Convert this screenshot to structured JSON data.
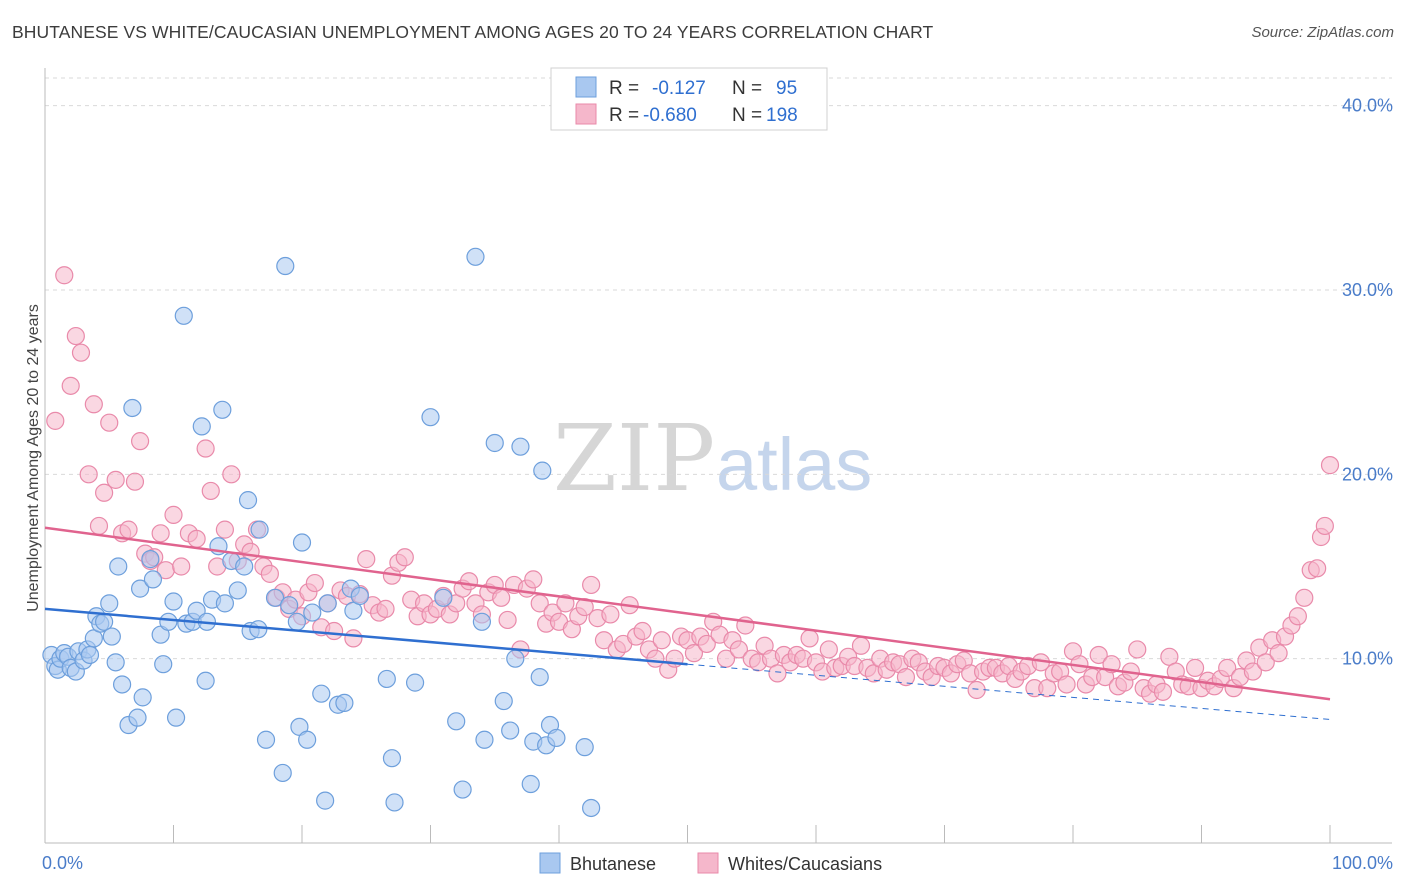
{
  "title": "BHUTANESE VS WHITE/CAUCASIAN UNEMPLOYMENT AMONG AGES 20 TO 24 YEARS CORRELATION CHART",
  "source": "Source: ZipAtlas.com",
  "watermark": {
    "part1": "ZIP",
    "part2": "atlas"
  },
  "colors": {
    "blue_fill": "#a9c8f0",
    "blue_stroke": "#6d9fdc",
    "blue_line": "#2f6fd0",
    "pink_fill": "#f5b7cb",
    "pink_stroke": "#e98aaa",
    "pink_line": "#e0638e",
    "grid": "#d9d9d9",
    "tick_text": "#4a7cc9"
  },
  "legend": {
    "rows": [
      {
        "r_label": "R =",
        "r_value": "-0.127",
        "n_label": "N =",
        "n_value": "95"
      },
      {
        "r_label": "R =",
        "r_value": "-0.680",
        "n_label": "N =",
        "n_value": "198"
      }
    ]
  },
  "bottom_legend": [
    "Bhutanese",
    "Whites/Caucasians"
  ],
  "chart_data": {
    "type": "scatter",
    "ylabel": "Unemployment Among Ages 20 to 24 years",
    "x_tick_labels": [
      "0.0%",
      "100.0%"
    ],
    "y_tick_labels": [
      "10.0%",
      "20.0%",
      "30.0%",
      "40.0%"
    ],
    "y_tick_values": [
      10,
      20,
      30,
      40
    ],
    "xlim": [
      0,
      100
    ],
    "ylim": [
      0,
      41.5
    ],
    "grid": true,
    "legend_position": "top-center",
    "series": [
      {
        "name": "Bhutanese",
        "trend": {
          "x_start": 0,
          "y_start": 12.7,
          "x_solid_end": 50,
          "x_end": 100,
          "y_end": 6.7
        },
        "points": [
          [
            0.5,
            10.2
          ],
          [
            0.8,
            9.6
          ],
          [
            1.0,
            9.4
          ],
          [
            1.2,
            10.0
          ],
          [
            1.5,
            10.3
          ],
          [
            1.8,
            10.1
          ],
          [
            2.0,
            9.5
          ],
          [
            2.4,
            9.3
          ],
          [
            2.6,
            10.4
          ],
          [
            3.0,
            9.9
          ],
          [
            3.3,
            10.5
          ],
          [
            3.5,
            10.2
          ],
          [
            3.8,
            11.1
          ],
          [
            4.0,
            12.3
          ],
          [
            4.3,
            11.9
          ],
          [
            4.6,
            12.0
          ],
          [
            5.0,
            13.0
          ],
          [
            5.2,
            11.2
          ],
          [
            5.5,
            9.8
          ],
          [
            5.7,
            15.0
          ],
          [
            6.0,
            8.6
          ],
          [
            6.5,
            6.4
          ],
          [
            6.8,
            23.6
          ],
          [
            7.2,
            6.8
          ],
          [
            7.4,
            13.8
          ],
          [
            7.6,
            7.9
          ],
          [
            8.2,
            15.4
          ],
          [
            8.4,
            14.3
          ],
          [
            9.0,
            11.3
          ],
          [
            9.2,
            9.7
          ],
          [
            9.6,
            12.0
          ],
          [
            10.0,
            13.1
          ],
          [
            10.2,
            6.8
          ],
          [
            10.8,
            28.6
          ],
          [
            11.0,
            11.9
          ],
          [
            11.5,
            12.0
          ],
          [
            11.8,
            12.6
          ],
          [
            12.2,
            22.6
          ],
          [
            12.5,
            8.8
          ],
          [
            12.6,
            12.0
          ],
          [
            13.0,
            13.2
          ],
          [
            13.5,
            16.1
          ],
          [
            13.8,
            23.5
          ],
          [
            14.0,
            13.0
          ],
          [
            14.5,
            15.3
          ],
          [
            15.0,
            13.7
          ],
          [
            15.5,
            15.0
          ],
          [
            15.8,
            18.6
          ],
          [
            16.0,
            11.5
          ],
          [
            16.6,
            11.6
          ],
          [
            16.7,
            17.0
          ],
          [
            17.2,
            5.6
          ],
          [
            17.9,
            13.3
          ],
          [
            18.5,
            3.8
          ],
          [
            18.7,
            31.3
          ],
          [
            19.0,
            12.9
          ],
          [
            19.6,
            12.0
          ],
          [
            19.8,
            6.3
          ],
          [
            20.0,
            16.3
          ],
          [
            20.4,
            5.6
          ],
          [
            20.8,
            12.5
          ],
          [
            21.5,
            8.1
          ],
          [
            21.8,
            2.3
          ],
          [
            22.0,
            13.0
          ],
          [
            22.8,
            7.5
          ],
          [
            23.3,
            7.6
          ],
          [
            23.8,
            13.8
          ],
          [
            24.0,
            12.6
          ],
          [
            24.5,
            13.4
          ],
          [
            26.6,
            8.9
          ],
          [
            27.0,
            4.6
          ],
          [
            27.2,
            2.2
          ],
          [
            28.8,
            8.7
          ],
          [
            30.0,
            23.1
          ],
          [
            31.0,
            13.3
          ],
          [
            32.0,
            6.6
          ],
          [
            32.5,
            2.9
          ],
          [
            33.5,
            31.8
          ],
          [
            34.0,
            12.0
          ],
          [
            34.2,
            5.6
          ],
          [
            35.0,
            21.7
          ],
          [
            35.7,
            7.7
          ],
          [
            36.2,
            6.1
          ],
          [
            36.6,
            10.0
          ],
          [
            37.0,
            21.5
          ],
          [
            37.8,
            3.2
          ],
          [
            38.0,
            5.5
          ],
          [
            38.5,
            9.0
          ],
          [
            38.7,
            20.2
          ],
          [
            39.0,
            5.3
          ],
          [
            39.3,
            6.4
          ],
          [
            39.8,
            5.7
          ],
          [
            42.0,
            5.2
          ],
          [
            42.5,
            1.9
          ]
        ]
      },
      {
        "name": "Whites/Caucasians",
        "trend": {
          "x_start": 0,
          "y_start": 17.1,
          "x_end": 100,
          "y_end": 7.8
        },
        "points": [
          [
            0.8,
            22.9
          ],
          [
            1.5,
            30.8
          ],
          [
            2.0,
            24.8
          ],
          [
            2.4,
            27.5
          ],
          [
            2.8,
            26.6
          ],
          [
            3.4,
            20.0
          ],
          [
            3.8,
            23.8
          ],
          [
            4.2,
            17.2
          ],
          [
            4.6,
            19.0
          ],
          [
            5.0,
            22.8
          ],
          [
            5.5,
            19.7
          ],
          [
            6.0,
            16.8
          ],
          [
            6.5,
            17.0
          ],
          [
            7.0,
            19.6
          ],
          [
            7.4,
            21.8
          ],
          [
            7.8,
            15.7
          ],
          [
            8.2,
            15.3
          ],
          [
            8.5,
            15.5
          ],
          [
            9.0,
            16.8
          ],
          [
            9.4,
            14.8
          ],
          [
            10.0,
            17.8
          ],
          [
            10.6,
            15.0
          ],
          [
            11.2,
            16.8
          ],
          [
            11.8,
            16.5
          ],
          [
            12.5,
            21.4
          ],
          [
            12.9,
            19.1
          ],
          [
            13.4,
            15.0
          ],
          [
            14.0,
            17.0
          ],
          [
            14.5,
            20.0
          ],
          [
            15.0,
            15.3
          ],
          [
            15.5,
            16.2
          ],
          [
            16.0,
            15.8
          ],
          [
            16.5,
            17.0
          ],
          [
            17.0,
            15.0
          ],
          [
            17.5,
            14.6
          ],
          [
            18.0,
            13.3
          ],
          [
            18.5,
            13.6
          ],
          [
            19.0,
            12.7
          ],
          [
            19.5,
            13.2
          ],
          [
            20.0,
            12.3
          ],
          [
            20.5,
            13.6
          ],
          [
            21.0,
            14.1
          ],
          [
            21.5,
            11.7
          ],
          [
            22.0,
            13.0
          ],
          [
            22.5,
            11.5
          ],
          [
            23.0,
            13.7
          ],
          [
            23.5,
            13.4
          ],
          [
            24.0,
            11.1
          ],
          [
            24.5,
            13.5
          ],
          [
            25.0,
            15.4
          ],
          [
            25.5,
            12.9
          ],
          [
            26.0,
            12.5
          ],
          [
            26.5,
            12.7
          ],
          [
            27.0,
            14.5
          ],
          [
            27.5,
            15.2
          ],
          [
            28.0,
            15.5
          ],
          [
            28.5,
            13.2
          ],
          [
            29.0,
            12.3
          ],
          [
            29.5,
            13.0
          ],
          [
            30.0,
            12.4
          ],
          [
            30.5,
            12.7
          ],
          [
            31.0,
            13.4
          ],
          [
            31.5,
            12.4
          ],
          [
            32.0,
            13.0
          ],
          [
            32.5,
            13.8
          ],
          [
            33.0,
            14.2
          ],
          [
            33.5,
            13.0
          ],
          [
            34.0,
            12.4
          ],
          [
            34.5,
            13.6
          ],
          [
            35.0,
            14.0
          ],
          [
            35.5,
            13.3
          ],
          [
            36.0,
            12.1
          ],
          [
            36.5,
            14.0
          ],
          [
            37.0,
            10.5
          ],
          [
            37.5,
            13.8
          ],
          [
            38.0,
            14.3
          ],
          [
            38.5,
            13.0
          ],
          [
            39.0,
            11.9
          ],
          [
            39.5,
            12.5
          ],
          [
            40.0,
            12.0
          ],
          [
            40.5,
            13.0
          ],
          [
            41.0,
            11.6
          ],
          [
            41.5,
            12.3
          ],
          [
            42.0,
            12.8
          ],
          [
            42.5,
            14.0
          ],
          [
            43.0,
            12.2
          ],
          [
            43.5,
            11.0
          ],
          [
            44.0,
            12.4
          ],
          [
            44.5,
            10.5
          ],
          [
            45.0,
            10.8
          ],
          [
            45.5,
            12.9
          ],
          [
            46.0,
            11.2
          ],
          [
            46.5,
            11.5
          ],
          [
            47.0,
            10.5
          ],
          [
            47.5,
            10.0
          ],
          [
            48.0,
            11.0
          ],
          [
            48.5,
            9.4
          ],
          [
            49.0,
            10.0
          ],
          [
            49.5,
            11.2
          ],
          [
            50.0,
            11.0
          ],
          [
            50.5,
            10.3
          ],
          [
            51.0,
            11.2
          ],
          [
            51.5,
            10.8
          ],
          [
            52.0,
            12.0
          ],
          [
            52.5,
            11.3
          ],
          [
            53.0,
            10.0
          ],
          [
            53.5,
            11.0
          ],
          [
            54.0,
            10.5
          ],
          [
            54.5,
            11.8
          ],
          [
            55.0,
            10.0
          ],
          [
            55.5,
            9.8
          ],
          [
            56.0,
            10.7
          ],
          [
            56.5,
            10.0
          ],
          [
            57.0,
            9.2
          ],
          [
            57.5,
            10.2
          ],
          [
            58.0,
            9.8
          ],
          [
            58.5,
            10.2
          ],
          [
            59.0,
            10.0
          ],
          [
            59.5,
            11.1
          ],
          [
            60.0,
            9.8
          ],
          [
            60.5,
            9.3
          ],
          [
            61.0,
            10.5
          ],
          [
            61.5,
            9.5
          ],
          [
            62.0,
            9.6
          ],
          [
            62.5,
            10.1
          ],
          [
            63.0,
            9.6
          ],
          [
            63.5,
            10.7
          ],
          [
            64.0,
            9.5
          ],
          [
            64.5,
            9.2
          ],
          [
            65.0,
            10.0
          ],
          [
            65.5,
            9.4
          ],
          [
            66.0,
            9.8
          ],
          [
            66.5,
            9.7
          ],
          [
            67.0,
            9.0
          ],
          [
            67.5,
            10.0
          ],
          [
            68.0,
            9.8
          ],
          [
            68.5,
            9.3
          ],
          [
            69.0,
            9.0
          ],
          [
            69.5,
            9.6
          ],
          [
            70.0,
            9.5
          ],
          [
            70.5,
            9.2
          ],
          [
            71.0,
            9.7
          ],
          [
            71.5,
            9.9
          ],
          [
            72.0,
            9.2
          ],
          [
            72.5,
            8.3
          ],
          [
            73.0,
            9.3
          ],
          [
            73.5,
            9.5
          ],
          [
            74.0,
            9.5
          ],
          [
            74.5,
            9.2
          ],
          [
            75.0,
            9.6
          ],
          [
            75.5,
            8.9
          ],
          [
            76.0,
            9.3
          ],
          [
            76.5,
            9.6
          ],
          [
            77.0,
            8.4
          ],
          [
            77.5,
            9.8
          ],
          [
            78.0,
            8.4
          ],
          [
            78.5,
            9.2
          ],
          [
            79.0,
            9.3
          ],
          [
            79.5,
            8.6
          ],
          [
            80.0,
            10.4
          ],
          [
            80.5,
            9.7
          ],
          [
            81.0,
            8.6
          ],
          [
            81.5,
            9.0
          ],
          [
            82.0,
            10.2
          ],
          [
            82.5,
            9.0
          ],
          [
            83.0,
            9.7
          ],
          [
            83.5,
            8.5
          ],
          [
            84.0,
            8.7
          ],
          [
            84.5,
            9.3
          ],
          [
            85.0,
            10.5
          ],
          [
            85.5,
            8.4
          ],
          [
            86.0,
            8.1
          ],
          [
            86.5,
            8.6
          ],
          [
            87.0,
            8.2
          ],
          [
            87.5,
            10.1
          ],
          [
            88.0,
            9.3
          ],
          [
            88.5,
            8.6
          ],
          [
            89.0,
            8.5
          ],
          [
            89.5,
            9.5
          ],
          [
            90.0,
            8.4
          ],
          [
            90.5,
            8.8
          ],
          [
            91.0,
            8.5
          ],
          [
            91.5,
            8.9
          ],
          [
            92.0,
            9.5
          ],
          [
            92.5,
            8.4
          ],
          [
            93.0,
            9.0
          ],
          [
            93.5,
            9.9
          ],
          [
            94.0,
            9.3
          ],
          [
            94.5,
            10.6
          ],
          [
            95.0,
            9.8
          ],
          [
            95.5,
            11.0
          ],
          [
            96.0,
            10.3
          ],
          [
            96.5,
            11.2
          ],
          [
            97.0,
            11.8
          ],
          [
            97.5,
            12.3
          ],
          [
            98.0,
            13.3
          ],
          [
            98.5,
            14.8
          ],
          [
            99.0,
            14.9
          ],
          [
            99.3,
            16.6
          ],
          [
            99.6,
            17.2
          ],
          [
            100.0,
            20.5
          ]
        ]
      }
    ]
  }
}
